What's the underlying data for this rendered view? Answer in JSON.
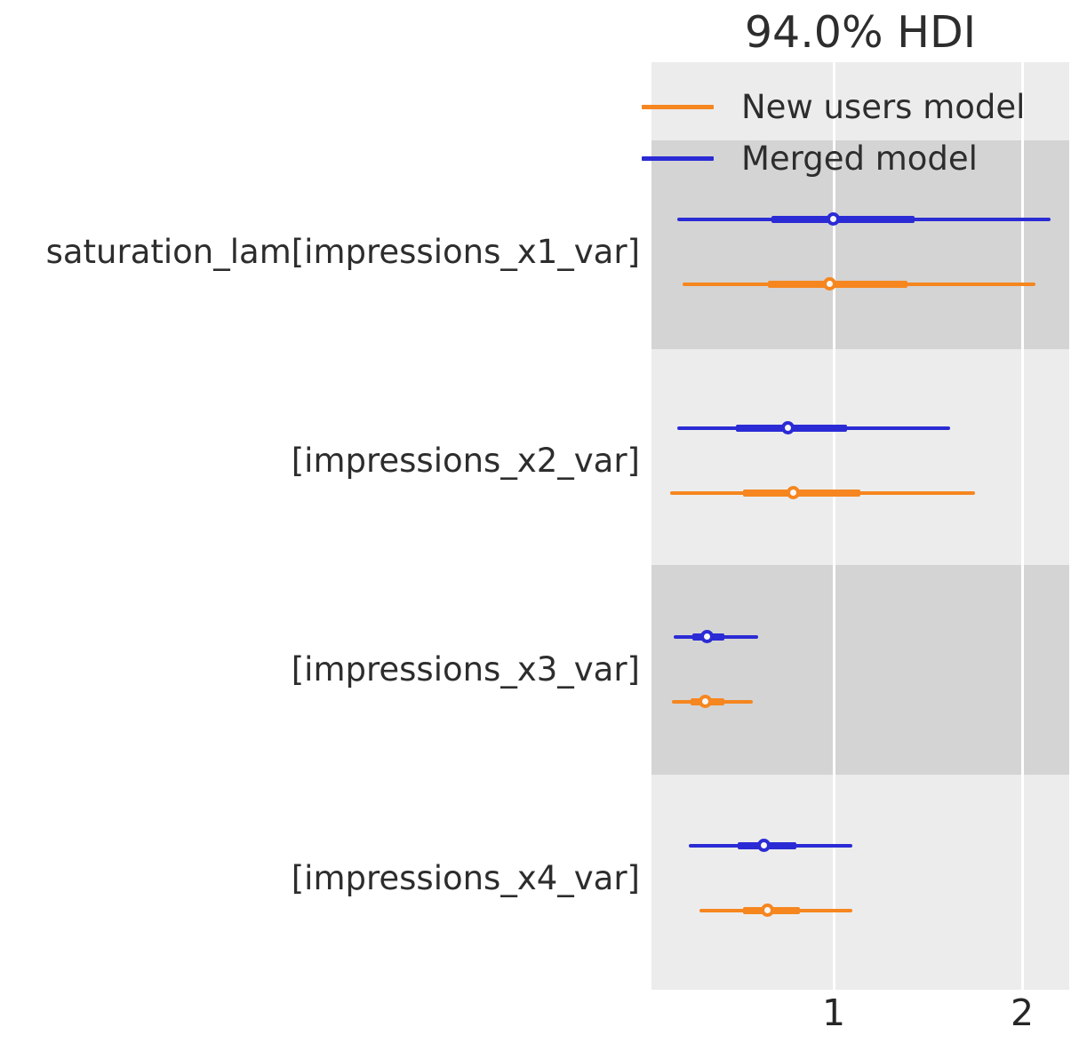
{
  "title": "94.0% HDI",
  "legend": {
    "items": [
      {
        "label": "New users model",
        "color": "#f6861f"
      },
      {
        "label": "Merged model",
        "color": "#2b2bd5"
      }
    ]
  },
  "x_axis": {
    "tick_labels": [
      "1",
      "2"
    ],
    "tick_values": [
      1,
      2
    ]
  },
  "chart_data": {
    "type": "forest",
    "title": "94.0% HDI",
    "hdi_probability": "94.0%",
    "orientation": "horizontal",
    "xlim": [
      0.03,
      2.25
    ],
    "xticks": [
      1,
      2
    ],
    "grid": "white vertical gridlines at x ticks, no axis spines",
    "legend_position": "top-left inside plot",
    "row_order_top_to_bottom": [
      "Merged model",
      "New users model"
    ],
    "background_bands": "alternating light/dark horizontal bands per parameter",
    "colors": {
      "merged_model": "#2b2bd5",
      "new_users_model": "#f6861f",
      "band_light": "#ececec",
      "band_dark": "#d4d4d4",
      "gridline": "#ffffff",
      "text": "#2d2d2d"
    },
    "parameters": [
      {
        "label": "saturation_lam[impressions_x1_var]",
        "models": [
          {
            "name": "Merged model",
            "median": 1.0,
            "hdi_94": [
              0.17,
              2.15
            ],
            "iqr_50": [
              0.67,
              1.43
            ]
          },
          {
            "name": "New users model",
            "median": 0.98,
            "hdi_94": [
              0.2,
              2.07
            ],
            "iqr_50": [
              0.65,
              1.39
            ]
          }
        ]
      },
      {
        "label": "[impressions_x2_var]",
        "models": [
          {
            "name": "Merged model",
            "median": 0.76,
            "hdi_94": [
              0.17,
              1.62
            ],
            "iqr_50": [
              0.48,
              1.07
            ]
          },
          {
            "name": "New users model",
            "median": 0.79,
            "hdi_94": [
              0.13,
              1.75
            ],
            "iqr_50": [
              0.52,
              1.14
            ]
          }
        ]
      },
      {
        "label": "[impressions_x3_var]",
        "models": [
          {
            "name": "Merged model",
            "median": 0.33,
            "hdi_94": [
              0.15,
              0.6
            ],
            "iqr_50": [
              0.25,
              0.42
            ]
          },
          {
            "name": "New users model",
            "median": 0.32,
            "hdi_94": [
              0.14,
              0.57
            ],
            "iqr_50": [
              0.24,
              0.42
            ]
          }
        ]
      },
      {
        "label": "[impressions_x4_var]",
        "models": [
          {
            "name": "Merged model",
            "median": 0.63,
            "hdi_94": [
              0.23,
              1.1
            ],
            "iqr_50": [
              0.49,
              0.8
            ]
          },
          {
            "name": "New users model",
            "median": 0.65,
            "hdi_94": [
              0.29,
              1.1
            ],
            "iqr_50": [
              0.52,
              0.82
            ]
          }
        ]
      }
    ]
  }
}
